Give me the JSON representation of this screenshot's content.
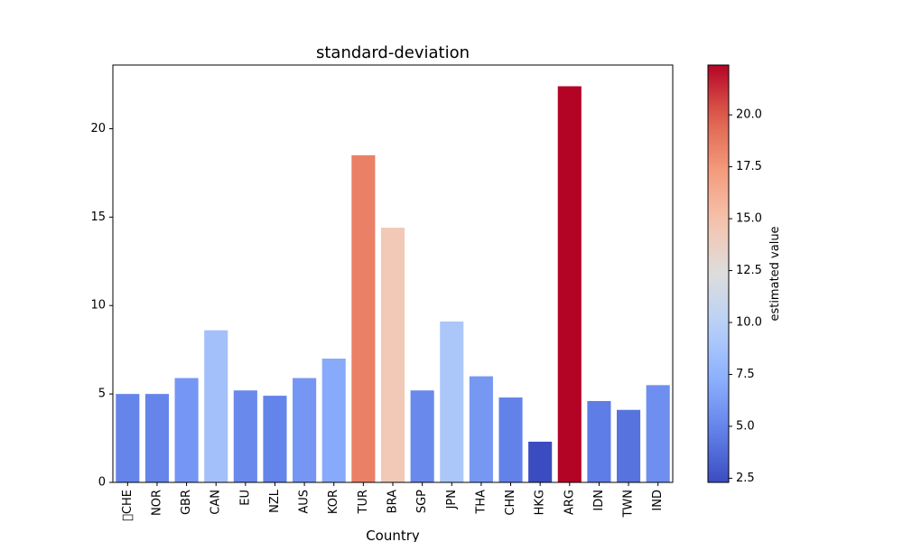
{
  "chart_data": {
    "type": "bar",
    "title": "standard-deviation",
    "xlabel": "Country",
    "ylabel": "",
    "categories": [
      "\u0000CHE",
      "NOR",
      "GBR",
      "CAN",
      "EU",
      "NZL",
      "AUS",
      "KOR",
      "TUR",
      "BRA",
      "SGP",
      "JPN",
      "THA",
      "CHN",
      "HKG",
      "ARG",
      "IDN",
      "TWN",
      "IND"
    ],
    "values": [
      5.0,
      5.0,
      5.9,
      8.6,
      5.2,
      4.9,
      5.9,
      7.0,
      18.5,
      14.4,
      5.2,
      9.1,
      6.0,
      4.8,
      2.3,
      22.4,
      4.6,
      4.1,
      5.5
    ],
    "ylim": [
      0,
      23.6
    ],
    "yticks": [
      0,
      5,
      10,
      15,
      20
    ],
    "grid": false,
    "colormap": "coolwarm",
    "colorbar": {
      "label": "estimated value",
      "range": [
        2.3,
        22.4
      ],
      "ticks": [
        2.5,
        5.0,
        7.5,
        10.0,
        12.5,
        15.0,
        17.5,
        20.0
      ],
      "tick_labels": [
        "2.5",
        "5.0",
        "7.5",
        "10.0",
        "12.5",
        "15.0",
        "17.5",
        "20.0"
      ]
    }
  }
}
